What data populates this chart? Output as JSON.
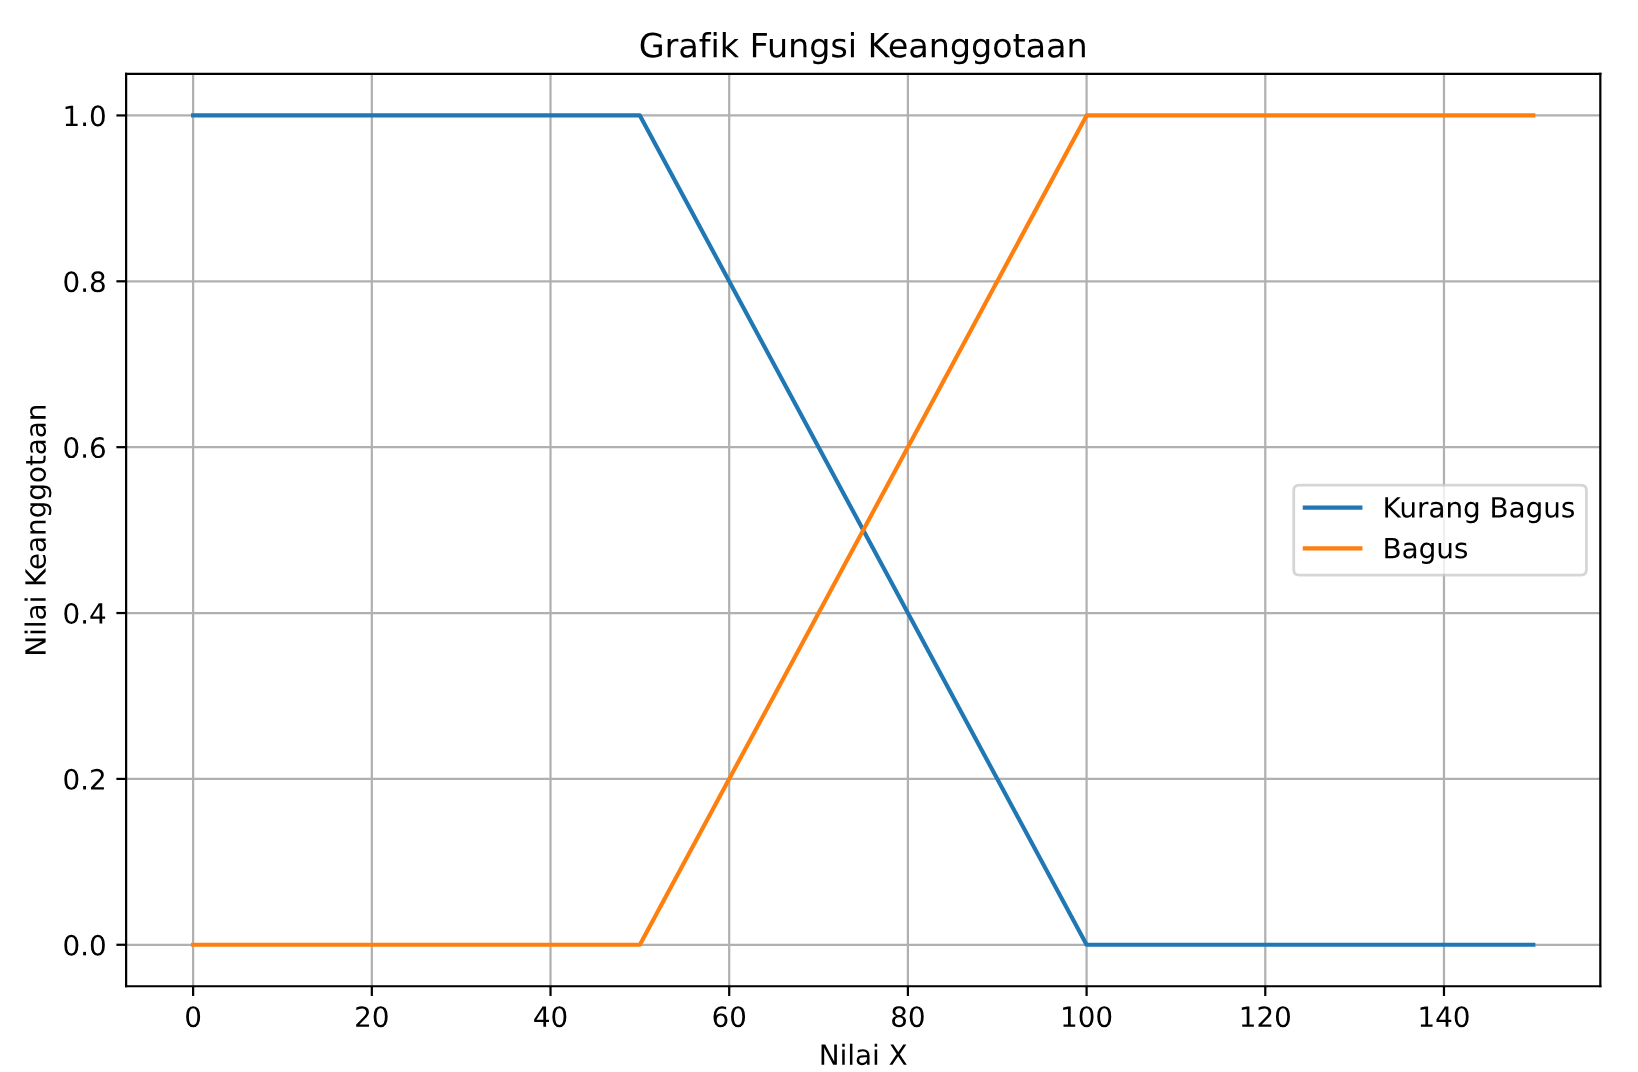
{
  "chart_data": {
    "type": "line",
    "title": "Grafik Fungsi Keanggotaan",
    "xlabel": "Nilai X",
    "ylabel": "Nilai Keanggotaan",
    "series": [
      {
        "name": "Kurang Bagus",
        "color": "#1f77b4",
        "x": [
          0,
          50,
          100,
          150
        ],
        "values": [
          1.0,
          1.0,
          0.0,
          0.0
        ]
      },
      {
        "name": "Bagus",
        "color": "#ff7f0e",
        "x": [
          0,
          50,
          100,
          150
        ],
        "values": [
          0.0,
          0.0,
          1.0,
          1.0
        ]
      }
    ],
    "xlim": [
      -7.5,
      157.5
    ],
    "ylim": [
      -0.05,
      1.05
    ],
    "xticks": [
      0,
      20,
      40,
      60,
      80,
      100,
      120,
      140
    ],
    "yticks": [
      {
        "value": 0,
        "label": "0.0"
      },
      {
        "value": 0.2,
        "label": "0.2"
      },
      {
        "value": 0.4,
        "label": "0.4"
      },
      {
        "value": 0.6,
        "label": "0.6"
      },
      {
        "value": 0.8,
        "label": "0.8"
      },
      {
        "value": 1,
        "label": "1.0"
      }
    ],
    "grid": true,
    "legend": "center right",
    "marker": "none",
    "line_style": "solid"
  }
}
